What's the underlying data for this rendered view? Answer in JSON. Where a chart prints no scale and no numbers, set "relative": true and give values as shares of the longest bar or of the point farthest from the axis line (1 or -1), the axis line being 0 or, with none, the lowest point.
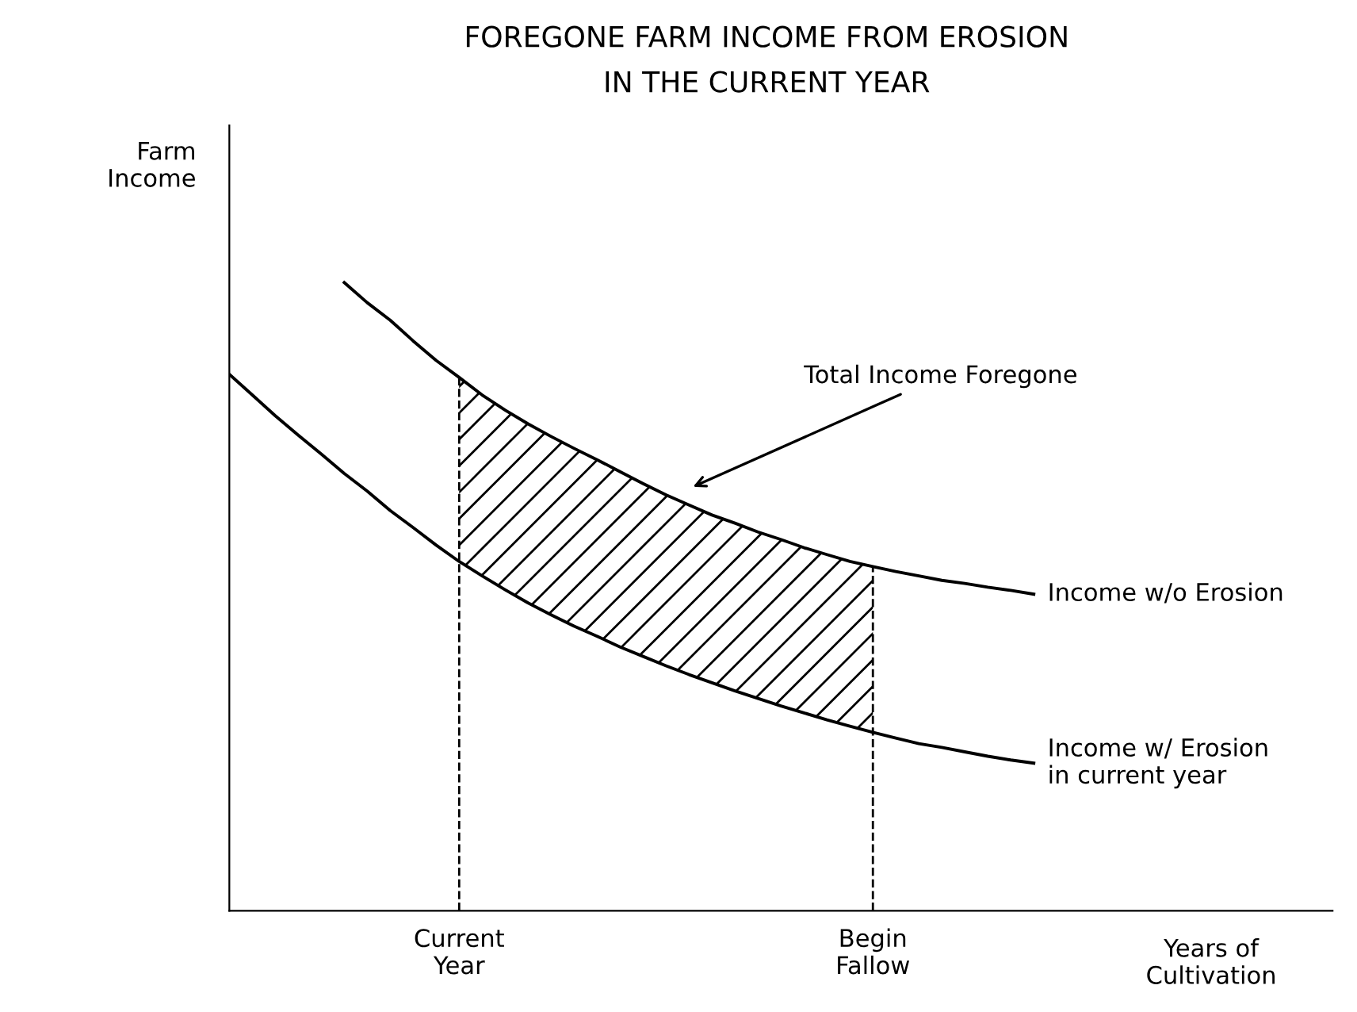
{
  "chart_data": {
    "type": "line",
    "relative": true,
    "title": "FOREGONE FARM INCOME FROM EROSION\nIN THE CURRENT YEAR",
    "xlabel": "Years of\nCultivation",
    "ylabel": "Farm\nIncome",
    "annotations": [
      "Total Income Foregone"
    ],
    "categories": [
      null,
      null,
      null,
      null,
      null,
      null,
      null,
      null,
      null,
      null,
      "Current\nYear",
      null,
      null,
      null,
      null,
      null,
      null,
      null,
      null,
      null,
      null,
      null,
      null,
      null,
      null,
      null,
      null,
      null,
      "Begin\nFallow",
      null,
      null,
      null,
      null,
      null,
      null,
      null,
      null,
      null,
      null,
      null,
      null,
      null,
      null,
      null,
      null,
      null,
      null,
      null,
      null
    ],
    "series": [
      {
        "name": "Income w/o Erosion",
        "color": "#000000",
        "values": [
          null,
          null,
          null,
          null,
          null,
          1.0,
          0.968,
          0.94,
          0.907,
          0.876,
          0.849,
          0.821,
          0.797,
          0.775,
          0.755,
          0.736,
          0.718,
          0.699,
          0.68,
          0.662,
          0.646,
          0.63,
          0.617,
          0.603,
          0.591,
          0.578,
          0.567,
          0.556,
          0.548,
          0.54,
          0.533,
          0.526,
          0.521,
          0.515,
          0.51,
          0.504,
          null,
          null,
          null,
          null,
          null,
          null,
          null,
          null,
          null,
          null,
          null,
          null,
          null
        ],
        "lower": [
          null,
          null,
          null,
          null,
          null,
          null,
          null,
          null,
          null,
          null,
          0.556,
          0.533,
          0.511,
          0.49,
          0.471,
          0.453,
          0.437,
          0.42,
          0.405,
          0.39,
          0.376,
          0.363,
          0.35,
          0.338,
          0.326,
          0.315,
          0.304,
          0.294,
          0.284,
          null,
          null,
          null,
          null,
          null,
          null,
          null,
          null,
          null,
          null,
          null,
          null,
          null,
          null,
          null,
          null,
          null,
          null,
          null,
          null
        ],
        "upper": [
          null,
          null,
          null,
          null,
          null,
          null,
          null,
          null,
          null,
          null,
          0.849,
          0.821,
          0.797,
          0.775,
          0.755,
          0.736,
          0.718,
          0.699,
          0.68,
          0.662,
          0.646,
          0.63,
          0.617,
          0.603,
          0.591,
          0.578,
          0.567,
          0.556,
          0.548,
          null,
          null,
          null,
          null,
          null,
          null,
          null,
          null,
          null,
          null,
          null,
          null,
          null,
          null,
          null,
          null,
          null,
          null,
          null,
          null
        ]
      },
      {
        "name": "Income w/ Erosion\nin current year",
        "color": "#000000",
        "values": [
          0.854,
          0.821,
          0.788,
          0.757,
          0.727,
          0.696,
          0.668,
          0.637,
          0.61,
          0.582,
          0.556,
          0.533,
          0.511,
          0.49,
          0.471,
          0.453,
          0.437,
          0.42,
          0.405,
          0.39,
          0.376,
          0.363,
          0.35,
          0.338,
          0.326,
          0.315,
          0.304,
          0.294,
          0.284,
          0.275,
          0.266,
          0.26,
          0.253,
          0.246,
          0.24,
          0.235,
          null,
          null,
          null,
          null,
          null,
          null,
          null,
          null,
          null,
          null,
          null,
          null,
          null
        ]
      }
    ],
    "ref_lines": [
      {
        "axis": "x",
        "value": "Current\nYear",
        "line_style": "dashed",
        "color": "#000000"
      },
      {
        "axis": "x",
        "value": "Begin\nFallow",
        "line_style": "dashed",
        "color": "#000000"
      }
    ],
    "grid": false,
    "legend": false,
    "line_style": "solid",
    "marker": "none"
  }
}
